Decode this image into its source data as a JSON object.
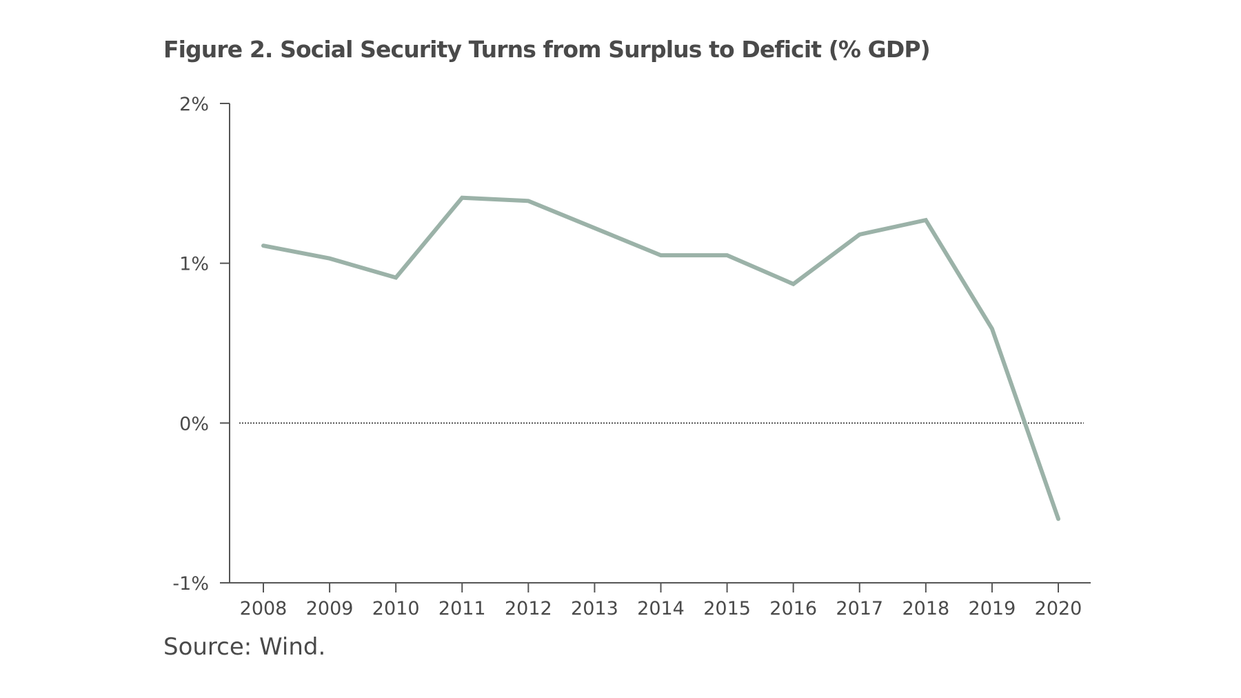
{
  "title": "Figure 2. Social Security Turns from Surplus to Deficit (% GDP)",
  "source": "Source: Wind.",
  "colors": {
    "line": "#9bb2a8",
    "axis": "#555555",
    "text": "#4a4a4a",
    "zero_line": "#222222"
  },
  "chart_data": {
    "type": "line",
    "title": "Figure 2. Social Security Turns from Surplus to Deficit (% GDP)",
    "xlabel": "",
    "ylabel": "",
    "x": [
      "2008",
      "2009",
      "2010",
      "2011",
      "2012",
      "2013",
      "2014",
      "2015",
      "2016",
      "2017",
      "2018",
      "2019",
      "2020"
    ],
    "series": [
      {
        "values": [
          1.11,
          1.03,
          0.91,
          1.41,
          1.39,
          1.22,
          1.05,
          1.05,
          0.87,
          1.18,
          1.27,
          0.59,
          -0.6
        ]
      }
    ],
    "ylim": [
      -1,
      2
    ],
    "yticks": [
      -1,
      0,
      1,
      2
    ],
    "ytick_labels": [
      "-1%",
      "0%",
      "1%",
      "2%"
    ],
    "reference_line": {
      "y": 0,
      "style": "dotted"
    },
    "grid": false,
    "legend": "none"
  }
}
